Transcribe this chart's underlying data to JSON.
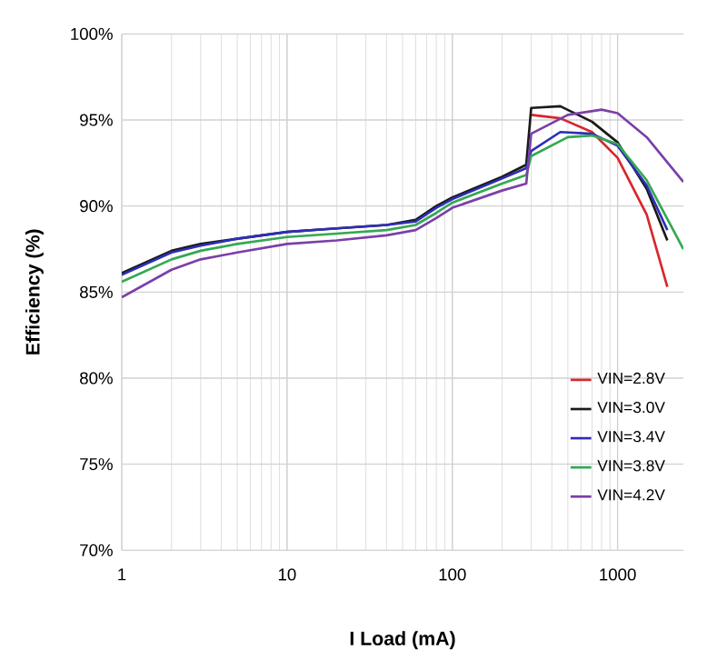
{
  "chart_data": {
    "type": "line",
    "xlabel": "I Load (mA)",
    "ylabel": "Efficiency (%)",
    "log": "x",
    "grid": true,
    "legend": "bottom right",
    "marker": "none",
    "line_style": "solid",
    "xlim": [
      1,
      2500
    ],
    "xticks": [
      1,
      10,
      100,
      1000
    ],
    "ylim": [
      70,
      100
    ],
    "yticks": [
      {
        "value": 70,
        "label": "70%"
      },
      {
        "value": 75,
        "label": "75%"
      },
      {
        "value": 80,
        "label": "80%"
      },
      {
        "value": 85,
        "label": "85%"
      },
      {
        "value": 90,
        "label": "90%"
      },
      {
        "value": 95,
        "label": "95%"
      },
      {
        "value": 100,
        "label": "100%"
      }
    ],
    "x": [
      1,
      2,
      3,
      5,
      10,
      20,
      40,
      60,
      80,
      100,
      200,
      280,
      300,
      450,
      700,
      1000,
      1500,
      2000
    ],
    "series": [
      {
        "name": "VIN=2.8V",
        "color": "#d8262c",
        "values": [
          null,
          null,
          null,
          null,
          null,
          null,
          null,
          null,
          null,
          null,
          null,
          null,
          95.3,
          95.1,
          94.3,
          92.8,
          89.5,
          85.3
        ]
      },
      {
        "name": "VIN=3.0V",
        "color": "#1a1a1a",
        "values": [
          86.1,
          87.4,
          87.8,
          88.1,
          88.5,
          88.7,
          88.9,
          89.2,
          90.0,
          90.5,
          91.7,
          92.4,
          95.7,
          95.8,
          94.9,
          93.7,
          91.0,
          88.0
        ]
      },
      {
        "name": "VIN=3.4V",
        "color": "#2e2eb8",
        "values": [
          86.0,
          87.3,
          87.7,
          88.1,
          88.5,
          88.7,
          88.9,
          89.1,
          89.9,
          90.4,
          91.6,
          92.2,
          93.2,
          94.3,
          94.2,
          93.5,
          91.2,
          88.6
        ]
      },
      {
        "name": "VIN=3.8V",
        "color": "#34a853",
        "x": [
          1,
          2,
          3,
          5,
          10,
          20,
          40,
          60,
          80,
          100,
          200,
          280,
          300,
          500,
          700,
          1000,
          1500,
          2500
        ],
        "values": [
          85.6,
          86.9,
          87.4,
          87.8,
          88.2,
          88.4,
          88.6,
          88.9,
          89.6,
          90.2,
          91.3,
          91.8,
          92.9,
          94.0,
          94.1,
          93.6,
          91.5,
          87.5
        ]
      },
      {
        "name": "VIN=4.2V",
        "color": "#7b3fa8",
        "x": [
          1,
          2,
          3,
          5,
          10,
          20,
          40,
          60,
          80,
          100,
          200,
          280,
          300,
          500,
          800,
          1000,
          1500,
          2500
        ],
        "values": [
          84.7,
          86.3,
          86.9,
          87.3,
          87.8,
          88.0,
          88.3,
          88.6,
          89.3,
          89.9,
          90.9,
          91.3,
          94.2,
          95.3,
          95.6,
          95.4,
          94.0,
          91.4
        ]
      }
    ]
  }
}
